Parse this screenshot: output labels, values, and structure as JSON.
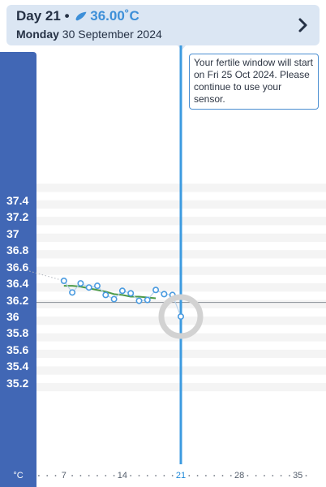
{
  "header": {
    "day_label": "Day 21",
    "separator": "•",
    "temperature": "36.00˚C",
    "weekday": "Monday",
    "date": "30 September 2024",
    "drop_icon": "drop-icon",
    "next_icon": "chevron-right-icon"
  },
  "tooltip": {
    "text": "Your fertile window will start on Fri 25 Oct 2024. Please continue to use your sensor."
  },
  "colors": {
    "axis": "#4167b5",
    "accent": "#3d8fd8",
    "cursor": "#3d9be0",
    "trend": "#4c9a48",
    "band": "#f4f4f4"
  },
  "chart_data": {
    "type": "line",
    "title": "",
    "xlabel": "",
    "ylabel": "°C",
    "unit_label": "°C",
    "ylim": [
      35.1,
      37.6
    ],
    "xlim": [
      1,
      36
    ],
    "y_ticks": [
      "37.4",
      "37.2",
      "37",
      "36.8",
      "36.6",
      "36.4",
      "36.2",
      "36",
      "35.8",
      "35.6",
      "35.4",
      "35.2"
    ],
    "x_ticks": [
      "7",
      "14",
      "21",
      "28",
      "35"
    ],
    "current_day": 21,
    "baseline": 36.17,
    "series": [
      {
        "role": "measurements",
        "x": [
          7,
          8,
          9,
          10,
          11,
          12,
          13,
          14,
          15,
          16,
          17,
          18,
          19,
          20,
          21
        ],
        "y": [
          36.43,
          36.29,
          36.4,
          36.35,
          36.37,
          36.26,
          36.21,
          36.31,
          36.28,
          36.19,
          36.2,
          36.32,
          36.27,
          36.26,
          36.0
        ]
      },
      {
        "role": "trend",
        "x": [
          7,
          8,
          9,
          10,
          11,
          12,
          13,
          14,
          15,
          16,
          17,
          18
        ],
        "y": [
          36.37,
          36.37,
          36.36,
          36.34,
          36.32,
          36.3,
          36.27,
          36.26,
          36.24,
          36.24,
          36.23,
          36.22
        ]
      }
    ],
    "extrapolation": {
      "x": [
        1,
        7
      ],
      "y": [
        36.6,
        36.43
      ]
    }
  }
}
